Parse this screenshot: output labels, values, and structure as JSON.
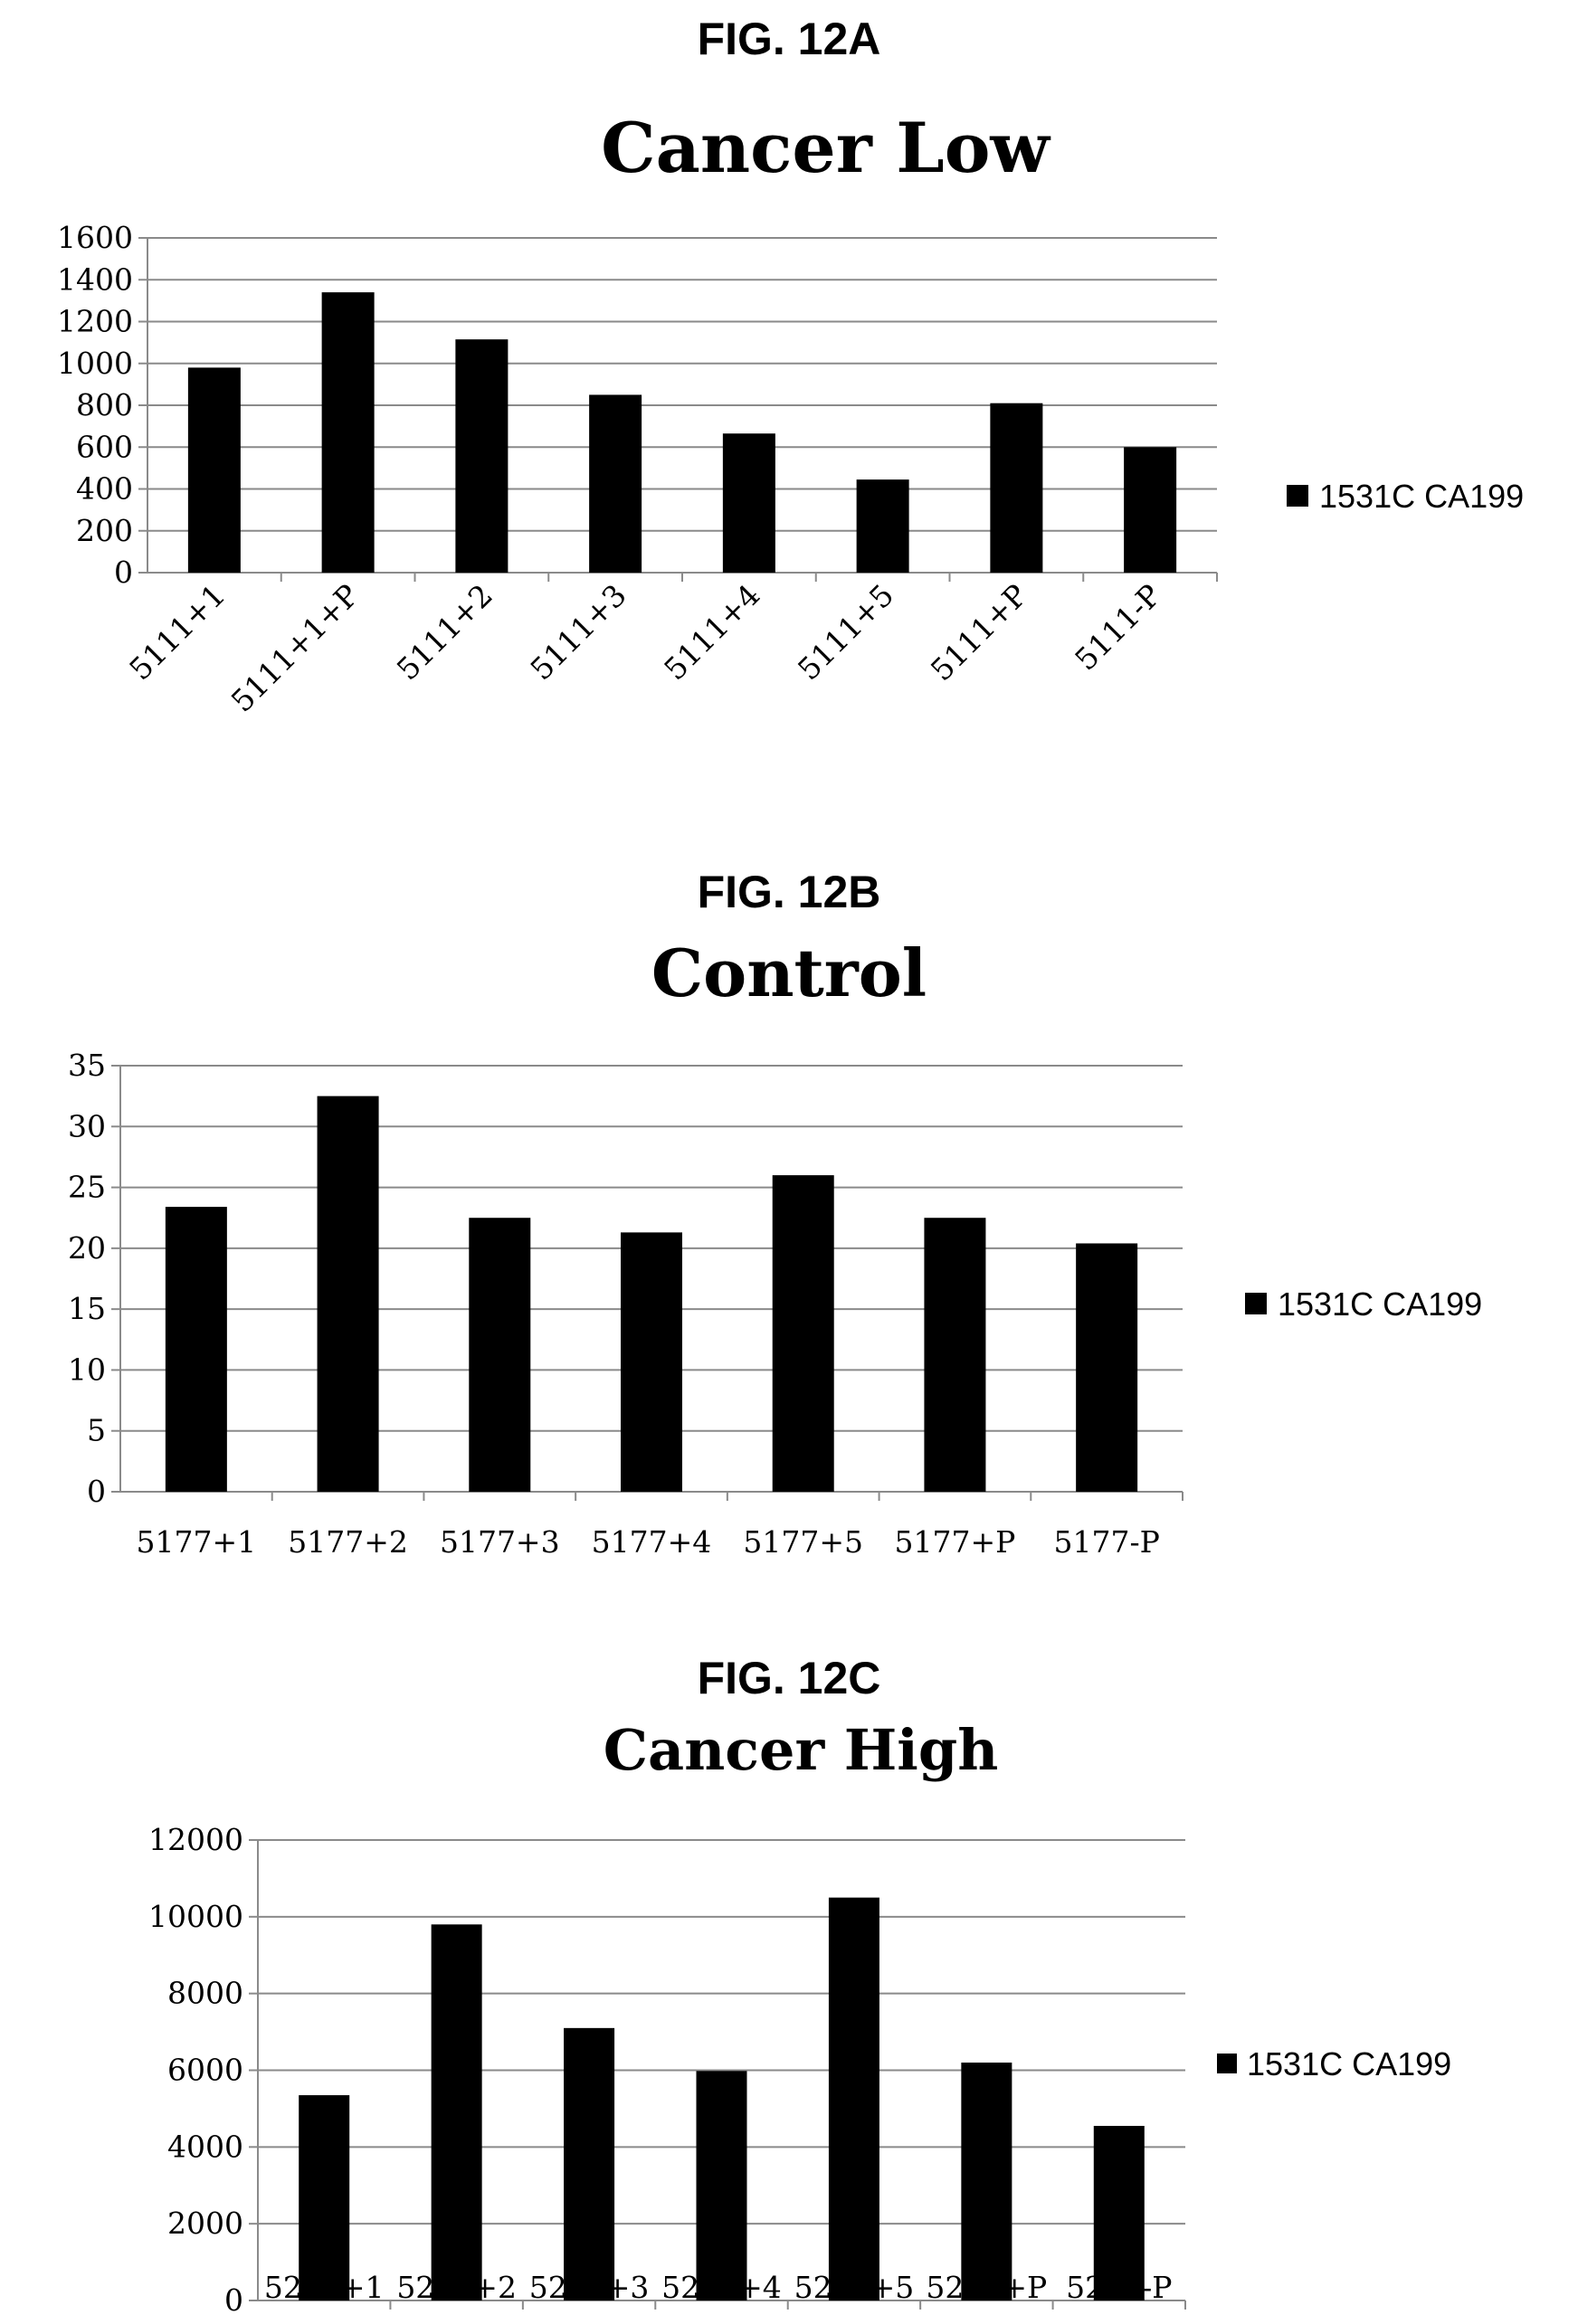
{
  "chart_data": [
    {
      "type": "bar",
      "figure_label": "FIG. 12A",
      "title": "Cancer Low",
      "categories": [
        "5111+1",
        "5111+1+P",
        "5111+2",
        "5111+3",
        "5111+4",
        "5111+5",
        "5111+P",
        "5111-P"
      ],
      "series": [
        {
          "name": "1531C CA199",
          "values": [
            980,
            1340,
            1115,
            850,
            665,
            445,
            810,
            600
          ]
        }
      ],
      "ylim": [
        0,
        1600
      ],
      "yticks": [
        0,
        200,
        400,
        600,
        800,
        1000,
        1200,
        1400,
        1600
      ],
      "grid": true,
      "legend_position": "right",
      "xlabel_rotation": -45
    },
    {
      "type": "bar",
      "figure_label": "FIG. 12B",
      "title": "Control",
      "categories": [
        "5177+1",
        "5177+2",
        "5177+3",
        "5177+4",
        "5177+5",
        "5177+P",
        "5177-P"
      ],
      "series": [
        {
          "name": "1531C CA199",
          "values": [
            23.4,
            32.5,
            22.5,
            21.3,
            26.0,
            22.5,
            20.4
          ]
        }
      ],
      "ylim": [
        0,
        35
      ],
      "yticks": [
        0,
        5,
        10,
        15,
        20,
        25,
        30,
        35
      ],
      "grid": true,
      "legend_position": "right",
      "xlabel_rotation": 0
    },
    {
      "type": "bar",
      "figure_label": "FIG. 12C",
      "title": "Cancer High",
      "categories": [
        "5285+1",
        "5285+2",
        "5285+3",
        "5285+4",
        "5285+5",
        "5285+P",
        "5285-P"
      ],
      "series": [
        {
          "name": "1531C CA199",
          "values": [
            5350,
            9800,
            7100,
            5980,
            10500,
            6200,
            4550
          ]
        }
      ],
      "ylim": [
        0,
        12000
      ],
      "yticks": [
        0,
        2000,
        4000,
        6000,
        8000,
        10000,
        12000
      ],
      "grid": true,
      "legend_position": "right",
      "xlabel_rotation": 0
    }
  ]
}
